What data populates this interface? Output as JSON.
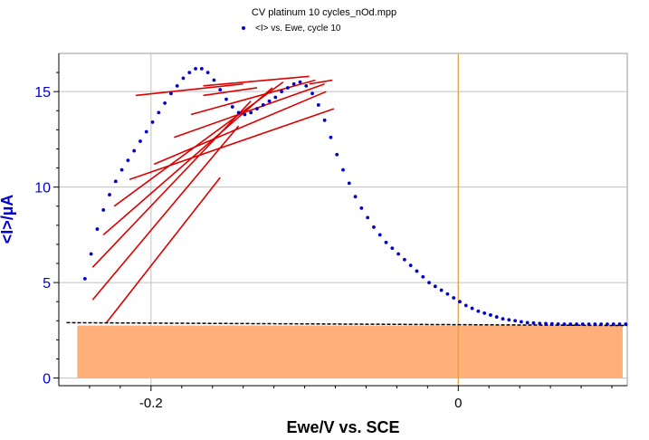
{
  "chart_data": {
    "type": "scatter",
    "title": "CV platinum 10 cycles_nOd.mpp",
    "xlabel": "Ewe/V vs. SCE",
    "ylabel": "<I>/µA",
    "xlim": [
      -0.26,
      0.11
    ],
    "ylim": [
      -0.4,
      17
    ],
    "x_ticks": [
      -0.2,
      0
    ],
    "x_tick_labels": [
      "-0.2",
      "0"
    ],
    "x_minor_ticks": [
      -0.24,
      -0.22,
      -0.18,
      -0.16,
      -0.14,
      -0.12,
      -0.1,
      -0.08,
      -0.06,
      -0.04,
      -0.02,
      0.02,
      0.04,
      0.06,
      0.08,
      0.1
    ],
    "y_ticks": [
      0,
      5,
      10,
      15
    ],
    "y_tick_labels": [
      "0",
      "5",
      "10",
      "15"
    ],
    "grid": true,
    "legend_position": "top-center",
    "colors": {
      "series": "#0000cc",
      "ylabel": "#0000cc",
      "hatch": "#dd0000",
      "baseline": "#000000",
      "fill": "#ffb07a",
      "vline": "#e0a040",
      "grid": "#c0c0c0"
    },
    "series": [
      {
        "name": "<I> vs. Ewe, cycle 10",
        "marker": "dot",
        "x": [
          -0.243,
          -0.239,
          -0.235,
          -0.231,
          -0.227,
          -0.223,
          -0.219,
          -0.215,
          -0.211,
          -0.207,
          -0.203,
          -0.199,
          -0.195,
          -0.191,
          -0.187,
          -0.183,
          -0.179,
          -0.175,
          -0.171,
          -0.167,
          -0.163,
          -0.159,
          -0.155,
          -0.151,
          -0.147,
          -0.143,
          -0.139,
          -0.135,
          -0.131,
          -0.127,
          -0.123,
          -0.119,
          -0.115,
          -0.111,
          -0.107,
          -0.103,
          -0.099,
          -0.095,
          -0.091,
          -0.087,
          -0.083,
          -0.079,
          -0.075,
          -0.071,
          -0.067,
          -0.063,
          -0.059,
          -0.055,
          -0.051,
          -0.047,
          -0.043,
          -0.039,
          -0.035,
          -0.031,
          -0.027,
          -0.023,
          -0.019,
          -0.015,
          -0.011,
          -0.007,
          -0.003,
          0.001,
          0.005,
          0.009,
          0.013,
          0.017,
          0.021,
          0.025,
          0.029,
          0.033,
          0.037,
          0.041,
          0.045,
          0.049,
          0.053,
          0.057,
          0.061,
          0.065,
          0.069,
          0.073,
          0.077,
          0.081,
          0.085,
          0.089,
          0.093,
          0.097,
          0.101,
          0.105,
          0.109
        ],
        "y": [
          5.2,
          6.5,
          7.8,
          8.8,
          9.6,
          10.3,
          10.9,
          11.4,
          11.9,
          12.4,
          12.9,
          13.4,
          13.9,
          14.4,
          14.9,
          15.3,
          15.7,
          16.0,
          16.2,
          16.2,
          16.0,
          15.6,
          15.1,
          14.6,
          14.2,
          13.9,
          13.8,
          13.9,
          14.1,
          14.3,
          14.5,
          14.7,
          15.0,
          15.2,
          15.4,
          15.5,
          15.3,
          14.9,
          14.3,
          13.5,
          12.6,
          11.7,
          10.9,
          10.2,
          9.5,
          8.9,
          8.4,
          7.9,
          7.5,
          7.1,
          6.8,
          6.5,
          6.2,
          5.9,
          5.6,
          5.3,
          5.0,
          4.8,
          4.6,
          4.4,
          4.2,
          4.0,
          3.8,
          3.65,
          3.5,
          3.4,
          3.3,
          3.2,
          3.1,
          3.05,
          3.0,
          2.95,
          2.9,
          2.88,
          2.86,
          2.85,
          2.84,
          2.83,
          2.82,
          2.82,
          2.82,
          2.82,
          2.82,
          2.82,
          2.82,
          2.82,
          2.82,
          2.82,
          2.82
        ]
      }
    ],
    "baseline": {
      "x": [
        -0.255,
        0.11
      ],
      "y": [
        2.9,
        2.75
      ],
      "style": "dashed"
    },
    "fill_region": {
      "x": [
        -0.248,
        0.107
      ],
      "y": [
        0,
        2.75
      ]
    },
    "vertical_line": {
      "x": 0
    },
    "hatch_lines": [
      {
        "x": [
          -0.229,
          -0.155
        ],
        "y": [
          2.9,
          10.5
        ]
      },
      {
        "x": [
          -0.238,
          -0.143
        ],
        "y": [
          4.1,
          13.2
        ]
      },
      {
        "x": [
          -0.238,
          -0.135
        ],
        "y": [
          5.8,
          14.5
        ]
      },
      {
        "x": [
          -0.231,
          -0.121
        ],
        "y": [
          7.5,
          15.2
        ]
      },
      {
        "x": [
          -0.224,
          -0.114
        ],
        "y": [
          9.0,
          15.5
        ]
      },
      {
        "x": [
          -0.214,
          -0.081
        ],
        "y": [
          10.4,
          14.1
        ]
      },
      {
        "x": [
          -0.198,
          -0.086
        ],
        "y": [
          11.2,
          15.0
        ]
      },
      {
        "x": [
          -0.185,
          -0.087
        ],
        "y": [
          12.6,
          15.4
        ]
      },
      {
        "x": [
          -0.174,
          -0.093
        ],
        "y": [
          13.8,
          15.6
        ]
      },
      {
        "x": [
          -0.166,
          -0.131
        ],
        "y": [
          14.8,
          15.2
        ]
      },
      {
        "x": [
          -0.166,
          -0.097
        ],
        "y": [
          15.3,
          15.8
        ]
      },
      {
        "x": [
          -0.21,
          -0.14
        ],
        "y": [
          14.8,
          15.4
        ]
      },
      {
        "x": [
          -0.097,
          -0.082
        ],
        "y": [
          15.4,
          15.6
        ]
      }
    ]
  }
}
